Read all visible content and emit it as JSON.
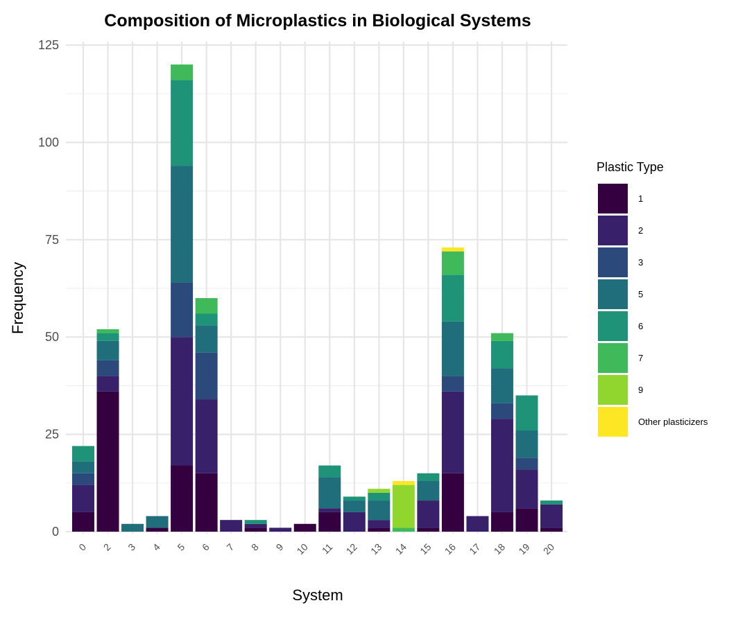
{
  "chart_data": {
    "type": "bar",
    "stacked": true,
    "title": "Composition of Microplastics in Biological Systems",
    "xlabel": "System",
    "ylabel": "Frequency",
    "ylim": [
      0,
      125
    ],
    "yticks": [
      0,
      25,
      50,
      75,
      100,
      125
    ],
    "grid": true,
    "legend_title": "Plastic Type",
    "legend_position": "right",
    "categories": [
      "0",
      "2",
      "3",
      "4",
      "5",
      "6",
      "7",
      "8",
      "9",
      "10",
      "11",
      "12",
      "13",
      "14",
      "15",
      "16",
      "17",
      "18",
      "19",
      "20"
    ],
    "series": [
      {
        "name": "1",
        "color": "#35003f",
        "values": [
          5,
          36,
          0,
          1,
          17,
          15,
          0,
          1,
          0,
          2,
          5,
          0,
          1,
          0,
          1,
          15,
          0,
          5,
          6,
          1
        ]
      },
      {
        "name": "2",
        "color": "#38206a",
        "values": [
          7,
          4,
          0,
          0,
          33,
          19,
          3,
          1,
          1,
          0,
          1,
          5,
          2,
          0,
          7,
          21,
          4,
          24,
          10,
          6
        ]
      },
      {
        "name": "3",
        "color": "#2b4a7b",
        "values": [
          3,
          4,
          0,
          0,
          14,
          12,
          0,
          0,
          0,
          0,
          0,
          0,
          0,
          0,
          0,
          4,
          0,
          4,
          3,
          0
        ]
      },
      {
        "name": "5",
        "color": "#206d7b",
        "values": [
          3,
          5,
          2,
          3,
          30,
          7,
          0,
          0,
          0,
          0,
          8,
          3,
          5,
          0,
          5,
          14,
          0,
          9,
          7,
          0
        ]
      },
      {
        "name": "6",
        "color": "#1f9377",
        "values": [
          4,
          2,
          0,
          0,
          22,
          3,
          0,
          1,
          0,
          0,
          3,
          1,
          2,
          0,
          2,
          12,
          0,
          7,
          9,
          1
        ]
      },
      {
        "name": "7",
        "color": "#40b95b",
        "values": [
          0,
          1,
          0,
          0,
          4,
          4,
          0,
          0,
          0,
          0,
          0,
          0,
          0,
          1,
          0,
          6,
          0,
          2,
          0,
          0
        ]
      },
      {
        "name": "9",
        "color": "#90d62f",
        "values": [
          0,
          0,
          0,
          0,
          0,
          0,
          0,
          0,
          0,
          0,
          0,
          0,
          1,
          11,
          0,
          0,
          0,
          0,
          0,
          0
        ]
      },
      {
        "name": "Other plasticizers",
        "color": "#fde725",
        "values": [
          0,
          0,
          0,
          0,
          0,
          0,
          0,
          0,
          0,
          0,
          0,
          0,
          0,
          1,
          0,
          1,
          0,
          0,
          0,
          0
        ]
      }
    ]
  }
}
